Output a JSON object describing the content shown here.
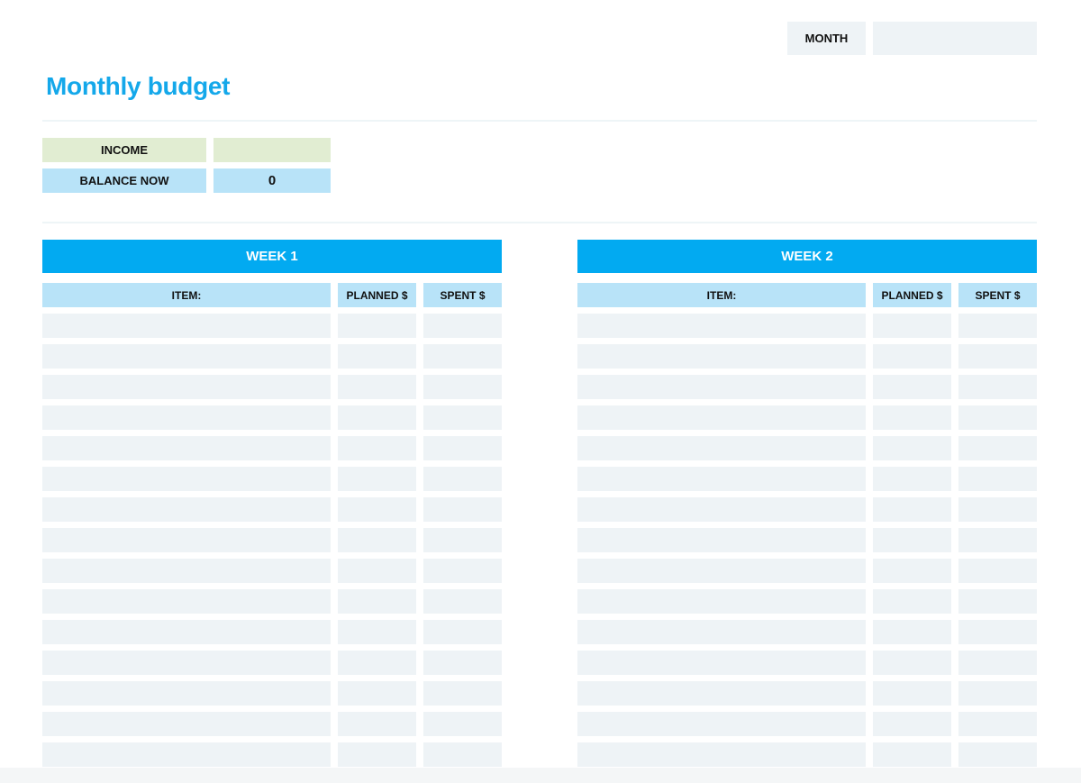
{
  "header": {
    "month_label": "MONTH",
    "month_value": "",
    "title": "Monthly budget"
  },
  "summary": {
    "income_label": "INCOME",
    "income_value": "",
    "balance_label": "BALANCE NOW",
    "balance_value": "0"
  },
  "weeks": [
    {
      "title": "WEEK 1",
      "columns": [
        "ITEM:",
        "PLANNED $",
        "SPENT $"
      ]
    },
    {
      "title": "WEEK 2",
      "columns": [
        "ITEM:",
        "PLANNED $",
        "SPENT $"
      ]
    }
  ],
  "rows_per_week": 15,
  "colors": {
    "accent": "#02aaf1",
    "title": "#14a8ea",
    "light_blue": "#b8e3f8",
    "light_green": "#e1edd2",
    "cell": "#eef3f6"
  }
}
